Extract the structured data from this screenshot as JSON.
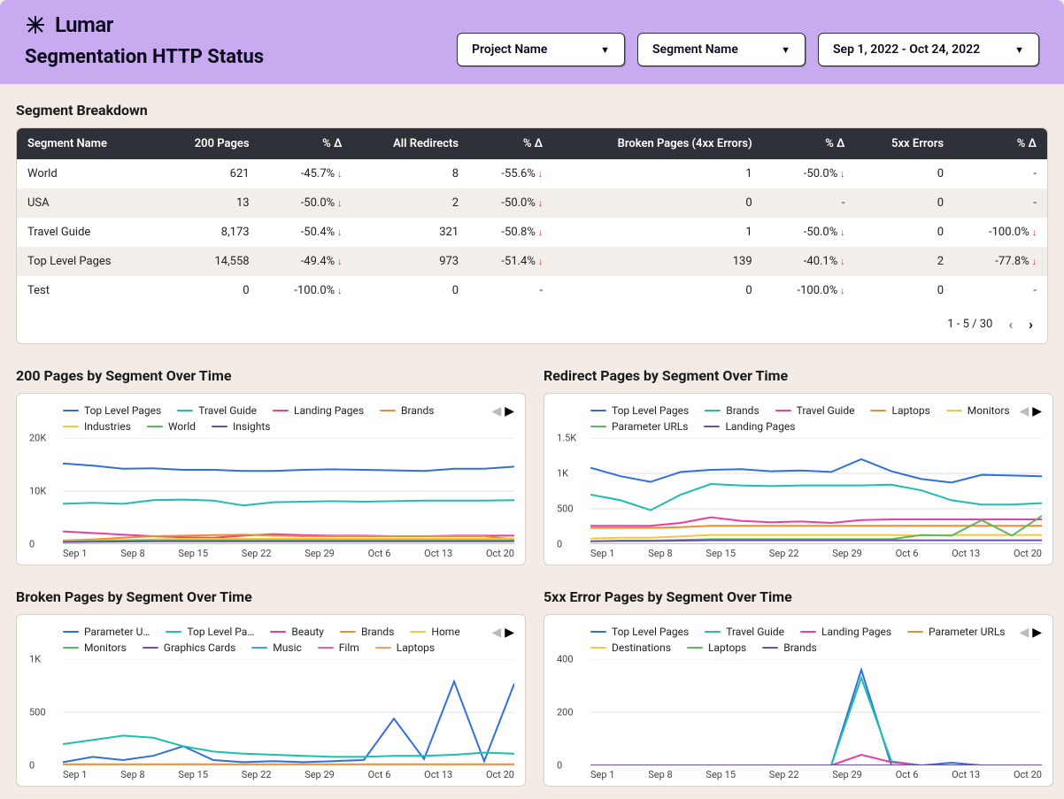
{
  "header": {
    "brand": "Lumar",
    "title": "Segmentation HTTP Status",
    "dropdowns": {
      "project": "Project Name",
      "segment": "Segment Name",
      "daterange": "Sep 1, 2022 - Oct 24, 2022"
    }
  },
  "colors": {
    "header_bg": "#c8aaf0",
    "body_bg": "#f3ece6",
    "table_header_bg": "#2e3238",
    "delta_down": "#d33"
  },
  "breakdown": {
    "title": "Segment Breakdown",
    "columns": [
      "Segment Name",
      "200 Pages",
      "% Δ",
      "All Redirects",
      "% Δ",
      "Broken Pages (4xx Errors)",
      "% Δ",
      "5xx Errors",
      "% Δ"
    ],
    "rows": [
      {
        "name": "World",
        "p200": "621",
        "d200": "-45.7%",
        "redir": "8",
        "dredir": "-55.6%",
        "broken": "1",
        "dbroken": "-50.0%",
        "e5xx": "0",
        "d5xx": "-"
      },
      {
        "name": "USA",
        "p200": "13",
        "d200": "-50.0%",
        "redir": "2",
        "dredir": "-50.0%",
        "broken": "0",
        "dbroken": "-",
        "e5xx": "0",
        "d5xx": "-"
      },
      {
        "name": "Travel Guide",
        "p200": "8,173",
        "d200": "-50.4%",
        "redir": "321",
        "dredir": "-50.8%",
        "broken": "1",
        "dbroken": "-50.0%",
        "e5xx": "0",
        "d5xx": "-100.0%"
      },
      {
        "name": "Top Level Pages",
        "p200": "14,558",
        "d200": "-49.4%",
        "redir": "973",
        "dredir": "-51.4%",
        "broken": "139",
        "dbroken": "-40.1%",
        "e5xx": "2",
        "d5xx": "-77.8%"
      },
      {
        "name": "Test",
        "p200": "0",
        "d200": "-100.0%",
        "redir": "0",
        "dredir": "-",
        "broken": "0",
        "dbroken": "-100.0%",
        "e5xx": "0",
        "d5xx": "-"
      }
    ],
    "pager": "1 - 5 / 30"
  },
  "xlabels": [
    "Sep 1",
    "Sep 8",
    "Sep 15",
    "Sep 22",
    "Sep 29",
    "Oct 6",
    "Oct 13",
    "Oct 20"
  ],
  "chart_style": {
    "grid_color": "#e0e0e0",
    "axis_color": "#888",
    "line_width": 2,
    "font_size_axis": 11,
    "font_size_legend": 12
  },
  "charts": {
    "c200": {
      "title": "200 Pages by Segment Over Time",
      "ymax": 20000,
      "yticks": [
        {
          "v": 0,
          "l": "0"
        },
        {
          "v": 10000,
          "l": "10K"
        },
        {
          "v": 20000,
          "l": "20K"
        }
      ],
      "legend": [
        {
          "label": "Top Level Pages",
          "color": "#2f6fe0"
        },
        {
          "label": "Travel Guide",
          "color": "#1fbcb0"
        },
        {
          "label": "Landing Pages",
          "color": "#e63fa1"
        },
        {
          "label": "Brands",
          "color": "#f08c2e"
        },
        {
          "label": "Industries",
          "color": "#f2c744"
        },
        {
          "label": "World",
          "color": "#5cb85c"
        },
        {
          "label": "Insights",
          "color": "#6a4fb3"
        }
      ],
      "series": [
        {
          "color": "#2f6fe0",
          "data": [
            15200,
            14800,
            14200,
            14300,
            14000,
            14000,
            13800,
            13800,
            14000,
            14100,
            14000,
            13900,
            13800,
            14200,
            14200,
            14600
          ]
        },
        {
          "color": "#1fbcb0",
          "data": [
            7600,
            7800,
            7600,
            8300,
            8400,
            8200,
            7300,
            7900,
            8000,
            8100,
            8000,
            8100,
            8200,
            8200,
            8200,
            8300
          ]
        },
        {
          "color": "#e63fa1",
          "data": [
            2400,
            2100,
            1800,
            1500,
            1300,
            1200,
            1600,
            1900,
            1700,
            1600,
            1600,
            1500,
            1500,
            1600,
            1600,
            1600
          ]
        },
        {
          "color": "#f08c2e",
          "data": [
            700,
            900,
            1200,
            1500,
            1600,
            1700,
            1800,
            1600,
            1500,
            1500,
            1500,
            1500,
            1500,
            1500,
            1500,
            900
          ]
        },
        {
          "color": "#f2c744",
          "data": [
            600,
            700,
            800,
            900,
            1000,
            1000,
            1000,
            1000,
            1000,
            1000,
            1000,
            1000,
            1000,
            1000,
            1000,
            1000
          ]
        },
        {
          "color": "#5cb85c",
          "data": [
            500,
            600,
            650,
            700,
            700,
            700,
            700,
            700,
            700,
            700,
            700,
            700,
            700,
            700,
            700,
            700
          ]
        },
        {
          "color": "#6a4fb3",
          "data": [
            400,
            450,
            500,
            550,
            550,
            550,
            550,
            550,
            550,
            550,
            550,
            550,
            550,
            550,
            550,
            550
          ]
        }
      ]
    },
    "redir": {
      "title": "Redirect Pages by Segment Over Time",
      "ymax": 1500,
      "yticks": [
        {
          "v": 0,
          "l": "0"
        },
        {
          "v": 500,
          "l": "500"
        },
        {
          "v": 1000,
          "l": "1K"
        },
        {
          "v": 1500,
          "l": "1.5K"
        }
      ],
      "legend": [
        {
          "label": "Top Level Pages",
          "color": "#2f6fe0"
        },
        {
          "label": "Brands",
          "color": "#1fbcb0"
        },
        {
          "label": "Travel Guide",
          "color": "#e63fa1"
        },
        {
          "label": "Laptops",
          "color": "#f08c2e"
        },
        {
          "label": "Monitors",
          "color": "#f2c744"
        },
        {
          "label": "Parameter URLs",
          "color": "#5cb85c"
        },
        {
          "label": "Landing Pages",
          "color": "#6a4fb3"
        }
      ],
      "series": [
        {
          "color": "#2f6fe0",
          "data": [
            1080,
            960,
            880,
            1020,
            1050,
            1060,
            1030,
            1040,
            1020,
            1200,
            1030,
            920,
            870,
            980,
            970,
            960
          ]
        },
        {
          "color": "#1fbcb0",
          "data": [
            700,
            620,
            480,
            700,
            850,
            830,
            820,
            830,
            830,
            830,
            840,
            760,
            620,
            560,
            560,
            580
          ]
        },
        {
          "color": "#e63fa1",
          "data": [
            260,
            260,
            260,
            300,
            380,
            330,
            310,
            320,
            300,
            340,
            350,
            350,
            350,
            350,
            350,
            350
          ]
        },
        {
          "color": "#f08c2e",
          "data": [
            230,
            230,
            230,
            240,
            260,
            260,
            260,
            260,
            260,
            260,
            260,
            260,
            260,
            260,
            260,
            260
          ]
        },
        {
          "color": "#f2c744",
          "data": [
            80,
            90,
            90,
            110,
            130,
            130,
            130,
            130,
            130,
            130,
            130,
            120,
            130,
            130,
            130,
            130
          ]
        },
        {
          "color": "#5cb85c",
          "data": [
            40,
            50,
            50,
            60,
            70,
            70,
            70,
            70,
            70,
            70,
            70,
            130,
            120,
            340,
            120,
            400
          ]
        },
        {
          "color": "#6a4fb3",
          "data": [
            40,
            45,
            45,
            50,
            55,
            55,
            55,
            55,
            55,
            55,
            55,
            55,
            55,
            55,
            55,
            55
          ]
        }
      ]
    },
    "broken": {
      "title": "Broken Pages by Segment Over Time",
      "ymax": 1000,
      "yticks": [
        {
          "v": 0,
          "l": "0"
        },
        {
          "v": 500,
          "l": "500"
        },
        {
          "v": 1000,
          "l": "1K"
        }
      ],
      "legend": [
        {
          "label": "Parameter U…",
          "color": "#2f6fe0"
        },
        {
          "label": "Top Level Pa…",
          "color": "#1fbcb0"
        },
        {
          "label": "Beauty",
          "color": "#e63fa1"
        },
        {
          "label": "Brands",
          "color": "#f08c2e"
        },
        {
          "label": "Home",
          "color": "#f2c744"
        },
        {
          "label": "Monitors",
          "color": "#5cb85c"
        },
        {
          "label": "Graphics Cards",
          "color": "#6a4fb3"
        },
        {
          "label": "Music",
          "color": "#3aa3e3"
        },
        {
          "label": "Film",
          "color": "#e85fa8"
        },
        {
          "label": "Laptops",
          "color": "#f0a05a"
        }
      ],
      "series": [
        {
          "color": "#2f6fe0",
          "data": [
            30,
            80,
            50,
            90,
            180,
            50,
            30,
            40,
            30,
            40,
            50,
            440,
            60,
            790,
            40,
            770
          ]
        },
        {
          "color": "#1fbcb0",
          "data": [
            200,
            240,
            280,
            260,
            180,
            130,
            110,
            100,
            90,
            80,
            80,
            90,
            90,
            100,
            120,
            110
          ]
        },
        {
          "color": "#e63fa1",
          "data": [
            5,
            5,
            5,
            6,
            6,
            6,
            6,
            6,
            6,
            6,
            6,
            6,
            6,
            6,
            6,
            6
          ]
        },
        {
          "color": "#f08c2e",
          "data": [
            10,
            10,
            10,
            10,
            10,
            10,
            10,
            10,
            10,
            10,
            10,
            10,
            10,
            10,
            10,
            10
          ]
        },
        {
          "color": "#f2c744",
          "data": [
            5,
            5,
            5,
            5,
            5,
            5,
            5,
            5,
            5,
            5,
            5,
            5,
            5,
            5,
            5,
            5
          ]
        },
        {
          "color": "#5cb85c",
          "data": [
            5,
            5,
            5,
            5,
            5,
            5,
            5,
            5,
            5,
            5,
            5,
            5,
            5,
            5,
            5,
            5
          ]
        },
        {
          "color": "#6a4fb3",
          "data": [
            5,
            5,
            5,
            5,
            5,
            5,
            5,
            5,
            5,
            5,
            5,
            5,
            5,
            5,
            5,
            5
          ]
        },
        {
          "color": "#3aa3e3",
          "data": [
            5,
            5,
            5,
            5,
            5,
            5,
            5,
            5,
            5,
            5,
            5,
            5,
            5,
            5,
            5,
            5
          ]
        },
        {
          "color": "#e85fa8",
          "data": [
            5,
            5,
            5,
            5,
            5,
            5,
            5,
            5,
            5,
            5,
            5,
            5,
            5,
            5,
            5,
            5
          ]
        },
        {
          "color": "#f0a05a",
          "data": [
            5,
            5,
            5,
            5,
            5,
            5,
            5,
            5,
            5,
            5,
            5,
            5,
            5,
            5,
            5,
            5
          ]
        }
      ]
    },
    "e5xx": {
      "title": "5xx Error Pages by Segment Over Time",
      "ymax": 400,
      "yticks": [
        {
          "v": 0,
          "l": "0"
        },
        {
          "v": 200,
          "l": "200"
        },
        {
          "v": 400,
          "l": "400"
        }
      ],
      "legend": [
        {
          "label": "Top Level Pages",
          "color": "#2f6fe0"
        },
        {
          "label": "Travel Guide",
          "color": "#1fbcb0"
        },
        {
          "label": "Landing Pages",
          "color": "#e63fa1"
        },
        {
          "label": "Parameter URLs",
          "color": "#f08c2e"
        },
        {
          "label": "Destinations",
          "color": "#f2c744"
        },
        {
          "label": "Laptops",
          "color": "#5cb85c"
        },
        {
          "label": "Brands",
          "color": "#6a4fb3"
        }
      ],
      "series": [
        {
          "color": "#2f6fe0",
          "data": [
            0,
            0,
            0,
            0,
            0,
            0,
            0,
            0,
            0,
            360,
            0,
            0,
            10,
            0,
            0,
            0
          ]
        },
        {
          "color": "#1fbcb0",
          "data": [
            0,
            0,
            0,
            0,
            0,
            0,
            0,
            0,
            0,
            330,
            15,
            0,
            0,
            0,
            0,
            0
          ]
        },
        {
          "color": "#e63fa1",
          "data": [
            0,
            0,
            0,
            0,
            0,
            0,
            0,
            0,
            0,
            40,
            12,
            0,
            0,
            0,
            0,
            0
          ]
        },
        {
          "color": "#f08c2e",
          "data": [
            0,
            0,
            0,
            0,
            0,
            0,
            0,
            0,
            0,
            0,
            0,
            0,
            0,
            0,
            0,
            0
          ]
        },
        {
          "color": "#f2c744",
          "data": [
            0,
            0,
            0,
            0,
            0,
            0,
            0,
            0,
            0,
            0,
            0,
            0,
            0,
            0,
            0,
            0
          ]
        },
        {
          "color": "#5cb85c",
          "data": [
            0,
            0,
            0,
            0,
            0,
            0,
            0,
            0,
            0,
            0,
            0,
            0,
            0,
            0,
            0,
            0
          ]
        },
        {
          "color": "#6a4fb3",
          "data": [
            0,
            0,
            0,
            0,
            0,
            0,
            0,
            0,
            0,
            0,
            0,
            0,
            0,
            0,
            0,
            0
          ]
        }
      ]
    }
  }
}
